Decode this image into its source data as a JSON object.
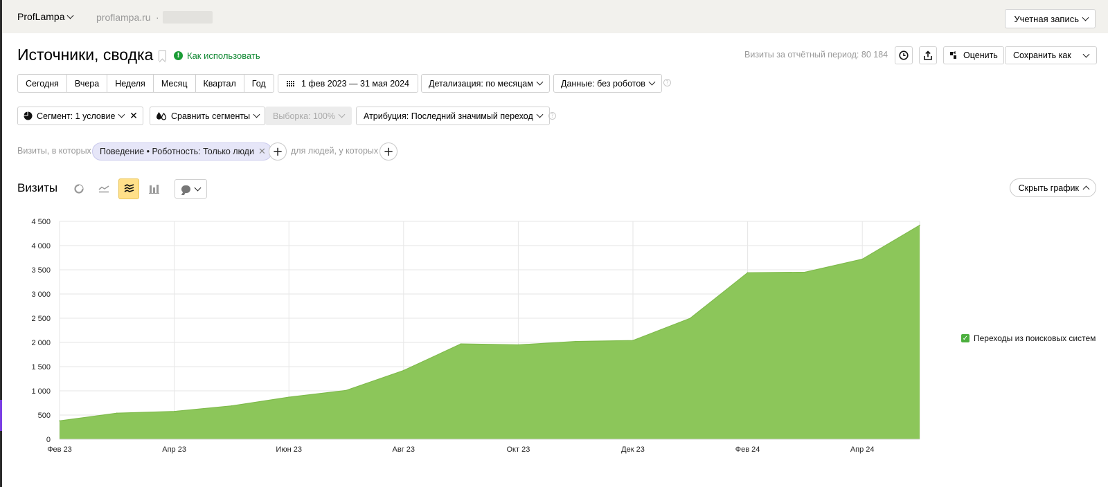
{
  "topbar": {
    "counter": "ProfLampa",
    "site": "proflampa.ru",
    "site_sep": "·",
    "account": "Учетная запись"
  },
  "report": {
    "title": "Источники, сводка",
    "how_to": "Как использовать",
    "visits_total": "Визиты за отчётный период: 80 184",
    "rate": "Оценить",
    "save_as": "Сохранить как"
  },
  "periods": [
    "Сегодня",
    "Вчера",
    "Неделя",
    "Месяц",
    "Квартал",
    "Год"
  ],
  "date_range": "1 фев 2023 — 31 мая 2024",
  "detail": "Детализация: по месяцам",
  "data_filter": "Данные: без роботов",
  "segment": "Сегмент: 1 условие",
  "compare": "Сравнить сегменты",
  "sample": "Выборка: 100%",
  "attribution": "Атрибуция: Последний значимый переход",
  "filters": {
    "visits_label": "Визиты, в которых",
    "chip": "Поведение • Роботность: Только люди",
    "people_label": "для людей, у которых"
  },
  "chart_toolbar": {
    "title": "Визиты",
    "hide": "Скрыть график"
  },
  "colors": {
    "accent_green": "#8cc65a",
    "legend_green": "#4caf3e",
    "active_toggle": "#ffe089"
  },
  "chart_data": {
    "type": "area",
    "x": [
      "Фев 23",
      "Мар 23",
      "Апр 23",
      "Май 23",
      "Июн 23",
      "Июл 23",
      "Авг 23",
      "Сен 23",
      "Окт 23",
      "Ноя 23",
      "Дек 23",
      "Янв 24",
      "Фев 24",
      "Мар 24",
      "Апр 24",
      "Май 24"
    ],
    "x_tick_labels": [
      "Фев 23",
      "Апр 23",
      "Июн 23",
      "Авг 23",
      "Окт 23",
      "Дек 23",
      "Фев 24",
      "Апр 24"
    ],
    "series": [
      {
        "name": "Переходы из поисковых систем",
        "values": [
          380,
          540,
          575,
          690,
          870,
          1010,
          1420,
          1970,
          1950,
          2020,
          2040,
          2500,
          3440,
          3450,
          3720,
          4420
        ]
      }
    ],
    "ylim": [
      0,
      4500
    ],
    "y_ticks": [
      0,
      500,
      1000,
      1500,
      2000,
      2500,
      3000,
      3500,
      4000,
      4500
    ],
    "y_tick_labels": [
      "0",
      "500",
      "1 000",
      "1 500",
      "2 000",
      "2 500",
      "3 000",
      "3 500",
      "4 000",
      "4 500"
    ],
    "grid": true,
    "legend_position": "right"
  }
}
